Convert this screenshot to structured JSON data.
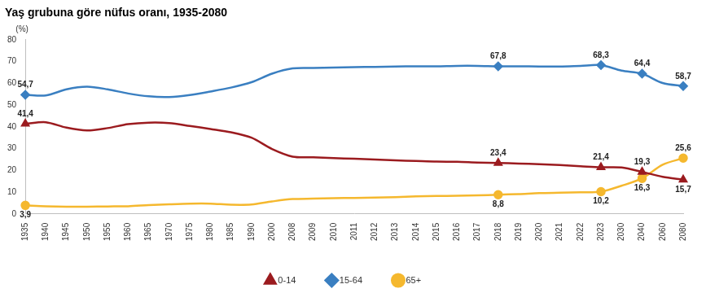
{
  "chart_data": {
    "type": "line",
    "title": "Yaş grubuna göre nüfus oranı, 1935-2080",
    "y_label": "(%)",
    "categories": [
      "1935",
      "1940",
      "1945",
      "1950",
      "1955",
      "1960",
      "1965",
      "1970",
      "1975",
      "1980",
      "1985",
      "1990",
      "2000",
      "2008",
      "2009",
      "2010",
      "2011",
      "2012",
      "2013",
      "2014",
      "2015",
      "2016",
      "2017",
      "2018",
      "2019",
      "2020",
      "2021",
      "2022",
      "2023",
      "2030",
      "2040",
      "2060",
      "2080"
    ],
    "series": [
      {
        "name": "0-14",
        "color": "#9b1b1f",
        "marker": "triangle",
        "values": [
          41.4,
          42.1,
          39.6,
          38.3,
          39.4,
          41.2,
          41.9,
          41.7,
          40.4,
          39.0,
          37.5,
          35.0,
          29.8,
          26.3,
          26.0,
          25.6,
          25.3,
          25.0,
          24.6,
          24.3,
          24.0,
          23.9,
          23.6,
          23.4,
          23.1,
          22.8,
          22.4,
          21.9,
          21.4,
          21.3,
          19.3,
          17.0,
          15.7
        ],
        "value_labels": [
          "41,4",
          null,
          null,
          null,
          null,
          null,
          null,
          null,
          null,
          null,
          null,
          null,
          null,
          null,
          null,
          null,
          null,
          null,
          null,
          null,
          null,
          null,
          null,
          "23,4",
          null,
          null,
          null,
          null,
          "21,4",
          null,
          "19,3",
          null,
          "15,7"
        ]
      },
      {
        "name": "15-64",
        "color": "#3a7fc1",
        "marker": "diamond",
        "values": [
          54.7,
          54.4,
          57.2,
          58.4,
          57.2,
          55.3,
          54.0,
          53.7,
          54.6,
          56.2,
          58.0,
          60.5,
          64.4,
          66.8,
          67.0,
          67.2,
          67.4,
          67.5,
          67.7,
          67.8,
          67.8,
          68.0,
          68.0,
          67.8,
          67.8,
          67.7,
          67.7,
          68.0,
          68.3,
          65.8,
          64.4,
          60.1,
          58.7
        ],
        "value_labels": [
          "54,7",
          null,
          null,
          null,
          null,
          null,
          null,
          null,
          null,
          null,
          null,
          null,
          null,
          null,
          null,
          null,
          null,
          null,
          null,
          null,
          null,
          null,
          null,
          "67,8",
          null,
          null,
          null,
          null,
          "68,3",
          null,
          "64,4",
          null,
          "58,7"
        ]
      },
      {
        "name": "65+",
        "color": "#f5b82e",
        "marker": "circle",
        "values": [
          3.9,
          3.5,
          3.3,
          3.3,
          3.4,
          3.5,
          4.0,
          4.4,
          4.7,
          4.7,
          4.2,
          4.3,
          5.7,
          6.8,
          7.0,
          7.2,
          7.3,
          7.5,
          7.7,
          8.0,
          8.2,
          8.3,
          8.5,
          8.8,
          9.1,
          9.5,
          9.7,
          9.9,
          10.2,
          12.9,
          16.3,
          22.6,
          25.6
        ],
        "value_labels": [
          "3,9",
          null,
          null,
          null,
          null,
          null,
          null,
          null,
          null,
          null,
          null,
          null,
          null,
          null,
          null,
          null,
          null,
          null,
          null,
          null,
          null,
          null,
          null,
          "8,8",
          null,
          null,
          null,
          null,
          "10,2",
          null,
          "16,3",
          null,
          "25,6"
        ]
      }
    ],
    "ylim": [
      0,
      80
    ],
    "yticks": [
      0,
      10,
      20,
      30,
      40,
      50,
      60,
      70,
      80
    ],
    "grid": false,
    "legend": "bottom",
    "data_labels": true
  }
}
